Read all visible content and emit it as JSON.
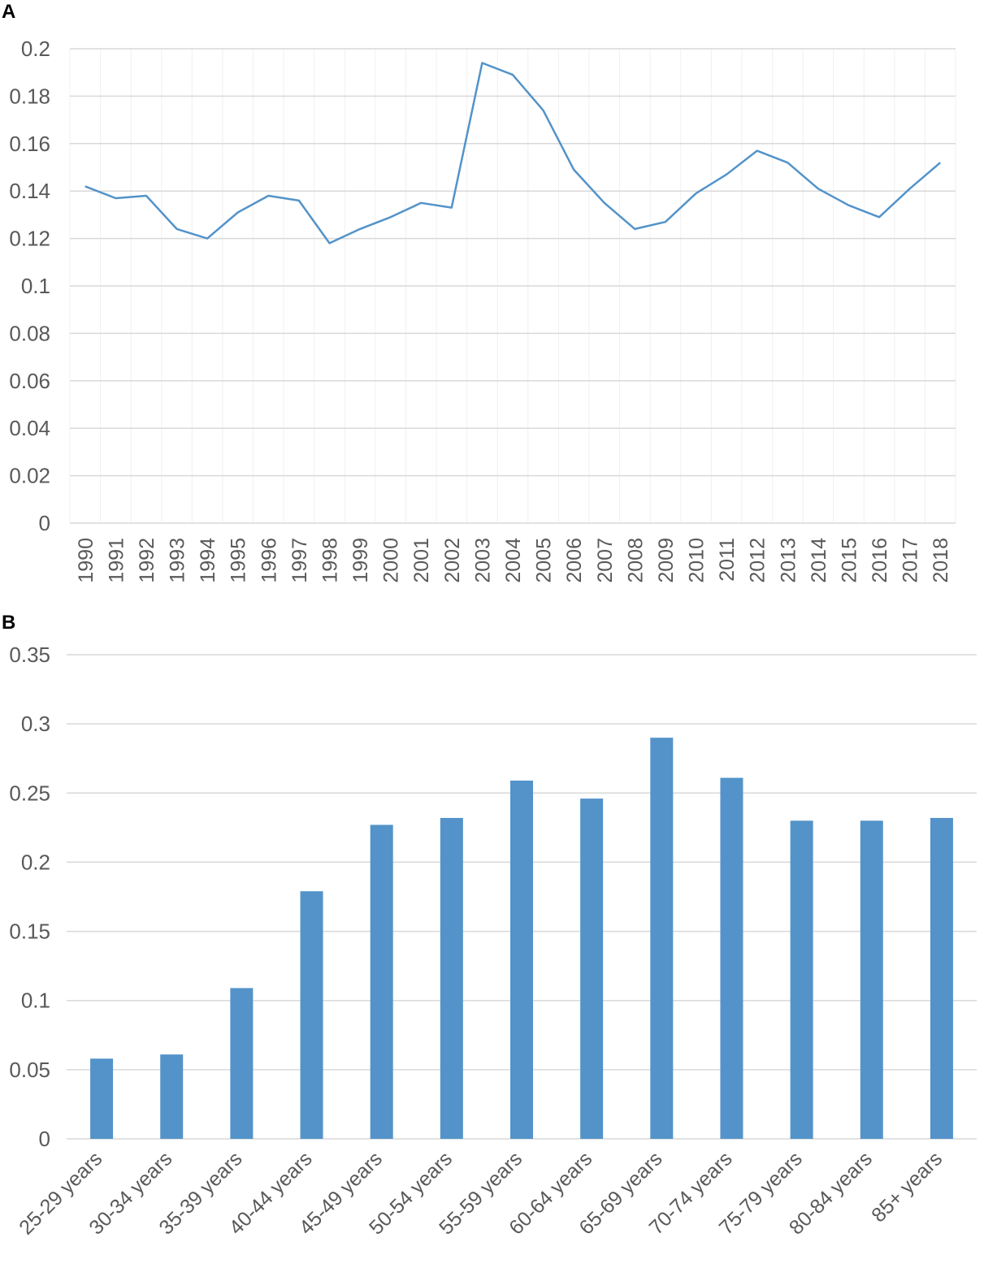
{
  "panels": {
    "a_label": "A",
    "b_label": "B"
  },
  "colors": {
    "series": "#5393c9",
    "grid": "#d9d9d9",
    "tick_text": "#595959"
  },
  "chart_data": [
    {
      "type": "line",
      "panel": "A",
      "title": "",
      "xlabel": "",
      "ylabel": "",
      "ylim": [
        0,
        0.2
      ],
      "yticks": [
        "0",
        "0.02",
        "0.04",
        "0.06",
        "0.08",
        "0.1",
        "0.12",
        "0.14",
        "0.16",
        "0.18",
        "0.2"
      ],
      "ytick_values": [
        0,
        0.02,
        0.04,
        0.06,
        0.08,
        0.1,
        0.12,
        0.14,
        0.16,
        0.18,
        0.2
      ],
      "grid": true,
      "legend": "none",
      "categories": [
        "1990",
        "1991",
        "1992",
        "1993",
        "1994",
        "1995",
        "1996",
        "1997",
        "1998",
        "1999",
        "2000",
        "2001",
        "2002",
        "2003",
        "2004",
        "2005",
        "2006",
        "2007",
        "2008",
        "2009",
        "2010",
        "2011",
        "2012",
        "2013",
        "2014",
        "2015",
        "2016",
        "2017",
        "2018"
      ],
      "values": [
        0.142,
        0.137,
        0.138,
        0.124,
        0.12,
        0.131,
        0.138,
        0.136,
        0.118,
        0.124,
        0.129,
        0.135,
        0.133,
        0.194,
        0.189,
        0.174,
        0.149,
        0.135,
        0.124,
        0.127,
        0.139,
        0.147,
        0.157,
        0.152,
        0.141,
        0.134,
        0.129,
        0.141,
        0.152
      ]
    },
    {
      "type": "bar",
      "panel": "B",
      "title": "",
      "xlabel": "",
      "ylabel": "",
      "ylim": [
        0,
        0.35
      ],
      "yticks": [
        "0",
        "0.05",
        "0.1",
        "0.15",
        "0.2",
        "0.25",
        "0.3",
        "0.35"
      ],
      "ytick_values": [
        0,
        0.05,
        0.1,
        0.15,
        0.2,
        0.25,
        0.3,
        0.35
      ],
      "grid": true,
      "legend": "none",
      "categories": [
        "25-29 years",
        "30-34 years",
        "35-39 years",
        "40-44 years",
        "45-49 years",
        "50-54 years",
        "55-59 years",
        "60-64 years",
        "65-69 years",
        "70-74 years",
        "75-79 years",
        "80-84 years",
        "85+ years"
      ],
      "values": [
        0.058,
        0.061,
        0.109,
        0.179,
        0.227,
        0.232,
        0.259,
        0.246,
        0.29,
        0.261,
        0.23,
        0.23,
        0.232
      ]
    }
  ]
}
